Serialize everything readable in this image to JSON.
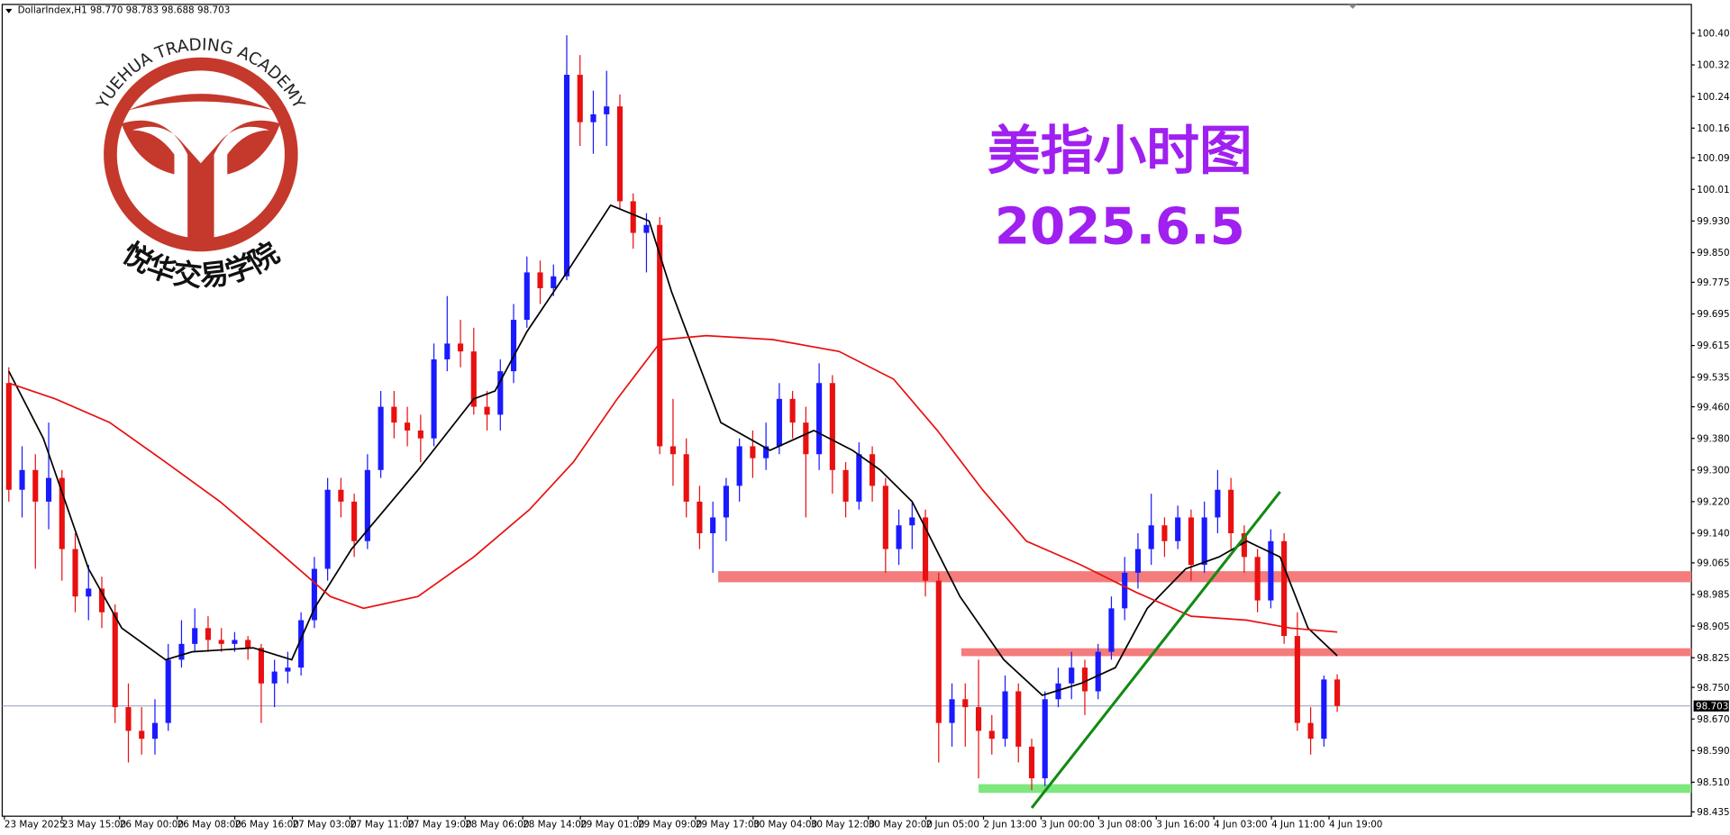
{
  "chart_data": {
    "type": "candlestick",
    "header": "DollarIndex,H1  98.770 98.783 98.688 98.703",
    "watermark_title": "美指小时图",
    "watermark_date": "2025.6.5",
    "logo_name_en": "YUEHUA TRADING ACADEMY",
    "logo_name_cn": "悦华交易学院",
    "up_color": "#1a1aff",
    "down_color": "#e81010",
    "ylim": [
      98.424,
      100.478
    ],
    "yticks": [
      100.405,
      100.325,
      100.245,
      100.165,
      {
        "value": 100.09,
        "label": "100.090"
      },
      {
        "value": 100.01,
        "label": "100.010"
      },
      {
        "value": 99.93,
        "label": "99.930"
      },
      {
        "value": 99.85,
        "label": "99.850"
      },
      99.775,
      99.695,
      99.615,
      99.535,
      {
        "value": 99.46,
        "label": "99.460"
      },
      {
        "value": 99.38,
        "label": "99.380"
      },
      {
        "value": 99.3,
        "label": "99.300"
      },
      {
        "value": 99.22,
        "label": "99.220"
      },
      {
        "value": 99.14,
        "label": "99.140"
      },
      99.065,
      98.985,
      98.905,
      98.825,
      {
        "value": 98.75,
        "label": "98.750"
      },
      {
        "value": 98.67,
        "label": "98.670"
      },
      {
        "value": 98.59,
        "label": "98.590"
      },
      {
        "value": 98.51,
        "label": "98.510"
      },
      98.435
    ],
    "xlabels": [
      "23 May 2025",
      "23 May 15:00",
      "26 May 00:00",
      "26 May 08:00",
      "26 May 16:00",
      "27 May 03:00",
      "27 May 11:00",
      "27 May 19:00",
      "28 May 06:00",
      "28 May 14:00",
      "29 May 01:00",
      "29 May 09:00",
      "29 May 17:00",
      "30 May 04:00",
      "30 May 12:00",
      "30 May 20:00",
      "2 Jun 05:00",
      "2 Jun 13:00",
      "3 Jun 00:00",
      "3 Jun 08:00",
      "3 Jun 16:00",
      "4 Jun 03:00",
      "4 Jun 11:00",
      "4 Jun 19:00"
    ],
    "last_price": 98.703,
    "candles": [
      [
        99.52,
        99.56,
        99.22,
        99.25
      ],
      [
        99.25,
        99.36,
        99.18,
        99.3
      ],
      [
        99.3,
        99.34,
        99.05,
        99.22
      ],
      [
        99.22,
        99.42,
        99.15,
        99.28
      ],
      [
        99.28,
        99.3,
        99.02,
        99.1
      ],
      [
        99.1,
        99.14,
        98.94,
        98.98
      ],
      [
        98.98,
        99.06,
        98.92,
        99.0
      ],
      [
        99.0,
        99.03,
        98.9,
        98.94
      ],
      [
        98.94,
        98.96,
        98.66,
        98.7
      ],
      [
        98.7,
        98.76,
        98.56,
        98.64
      ],
      [
        98.64,
        98.7,
        98.58,
        98.62
      ],
      [
        98.62,
        98.72,
        98.58,
        98.66
      ],
      [
        98.66,
        98.86,
        98.64,
        98.82
      ],
      [
        98.82,
        98.92,
        98.8,
        98.86
      ],
      [
        98.86,
        98.95,
        98.84,
        98.9
      ],
      [
        98.9,
        98.93,
        98.84,
        98.87
      ],
      [
        98.87,
        98.9,
        98.84,
        98.86
      ],
      [
        98.86,
        98.89,
        98.84,
        98.87
      ],
      [
        98.87,
        98.88,
        98.82,
        98.85
      ],
      [
        98.85,
        98.86,
        98.66,
        98.76
      ],
      [
        98.76,
        98.82,
        98.7,
        98.79
      ],
      [
        98.79,
        98.84,
        98.76,
        98.8
      ],
      [
        98.8,
        98.94,
        98.78,
        98.92
      ],
      [
        98.92,
        99.08,
        98.9,
        99.05
      ],
      [
        99.05,
        99.28,
        99.02,
        99.25
      ],
      [
        99.25,
        99.28,
        99.18,
        99.22
      ],
      [
        99.22,
        99.24,
        99.08,
        99.12
      ],
      [
        99.12,
        99.34,
        99.1,
        99.3
      ],
      [
        99.3,
        99.5,
        99.28,
        99.46
      ],
      [
        99.46,
        99.5,
        99.38,
        99.42
      ],
      [
        99.42,
        99.46,
        99.36,
        99.4
      ],
      [
        99.4,
        99.44,
        99.32,
        99.38
      ],
      [
        99.38,
        99.62,
        99.36,
        99.58
      ],
      [
        99.58,
        99.74,
        99.55,
        99.62
      ],
      [
        99.62,
        99.68,
        99.56,
        99.6
      ],
      [
        99.6,
        99.66,
        99.44,
        99.46
      ],
      [
        99.46,
        99.5,
        99.4,
        99.44
      ],
      [
        99.44,
        99.58,
        99.4,
        99.55
      ],
      [
        99.55,
        99.72,
        99.52,
        99.68
      ],
      [
        99.68,
        99.84,
        99.66,
        99.8
      ],
      [
        99.8,
        99.83,
        99.72,
        99.76
      ],
      [
        99.76,
        99.82,
        99.74,
        99.79
      ],
      [
        99.79,
        100.4,
        99.78,
        100.3
      ],
      [
        100.3,
        100.35,
        100.12,
        100.18
      ],
      [
        100.18,
        100.26,
        100.1,
        100.2
      ],
      [
        100.2,
        100.31,
        100.12,
        100.22
      ],
      [
        100.22,
        100.25,
        99.96,
        99.98
      ],
      [
        99.98,
        100.0,
        99.86,
        99.9
      ],
      [
        99.9,
        99.95,
        99.8,
        99.92
      ],
      [
        99.92,
        99.94,
        99.34,
        99.36
      ],
      [
        99.36,
        99.48,
        99.26,
        99.34
      ],
      [
        99.34,
        99.38,
        99.18,
        99.22
      ],
      [
        99.22,
        99.26,
        99.1,
        99.14
      ],
      [
        99.14,
        99.22,
        99.04,
        99.18
      ],
      [
        99.18,
        99.28,
        99.12,
        99.26
      ],
      [
        99.26,
        99.38,
        99.22,
        99.36
      ],
      [
        99.36,
        99.4,
        99.28,
        99.33
      ],
      [
        99.33,
        99.42,
        99.3,
        99.36
      ],
      [
        99.36,
        99.52,
        99.34,
        99.48
      ],
      [
        99.48,
        99.5,
        99.38,
        99.42
      ],
      [
        99.42,
        99.46,
        99.18,
        99.34
      ],
      [
        99.34,
        99.57,
        99.3,
        99.52
      ],
      [
        99.52,
        99.54,
        99.24,
        99.3
      ],
      [
        99.3,
        99.32,
        99.18,
        99.22
      ],
      [
        99.22,
        99.37,
        99.2,
        99.34
      ],
      [
        99.34,
        99.36,
        99.22,
        99.26
      ],
      [
        99.26,
        99.28,
        99.04,
        99.1
      ],
      [
        99.1,
        99.2,
        99.06,
        99.16
      ],
      [
        99.16,
        99.22,
        99.1,
        99.18
      ],
      [
        99.18,
        99.2,
        98.98,
        99.02
      ],
      [
        99.02,
        99.04,
        98.56,
        98.66
      ],
      [
        98.66,
        98.76,
        98.6,
        98.72
      ],
      [
        98.72,
        98.76,
        98.6,
        98.7
      ],
      [
        98.7,
        98.82,
        98.52,
        98.64
      ],
      [
        98.64,
        98.68,
        98.58,
        98.62
      ],
      [
        98.62,
        98.78,
        98.6,
        98.74
      ],
      [
        98.74,
        98.76,
        98.56,
        98.6
      ],
      [
        98.6,
        98.62,
        98.49,
        98.52
      ],
      [
        98.52,
        98.74,
        98.5,
        98.72
      ],
      [
        98.72,
        98.8,
        98.7,
        98.76
      ],
      [
        98.76,
        98.84,
        98.72,
        98.8
      ],
      [
        98.8,
        98.82,
        98.68,
        98.74
      ],
      [
        98.74,
        98.86,
        98.72,
        98.84
      ],
      [
        98.84,
        98.98,
        98.82,
        98.95
      ],
      [
        98.95,
        99.08,
        98.92,
        99.04
      ],
      [
        99.04,
        99.14,
        99.0,
        99.1
      ],
      [
        99.1,
        99.24,
        99.06,
        99.16
      ],
      [
        99.16,
        99.18,
        99.08,
        99.12
      ],
      [
        99.12,
        99.21,
        99.1,
        99.18
      ],
      [
        99.18,
        99.2,
        99.02,
        99.06
      ],
      [
        99.06,
        99.22,
        99.04,
        99.18
      ],
      [
        99.18,
        99.3,
        99.14,
        99.25
      ],
      [
        99.25,
        99.28,
        99.1,
        99.14
      ],
      [
        99.14,
        99.16,
        99.04,
        99.08
      ],
      [
        99.08,
        99.1,
        98.94,
        98.97
      ],
      [
        98.97,
        99.15,
        98.95,
        99.12
      ],
      [
        99.12,
        99.14,
        98.86,
        98.88
      ],
      [
        98.88,
        98.94,
        98.64,
        98.66
      ],
      [
        98.66,
        98.7,
        98.58,
        98.62
      ],
      [
        98.62,
        98.78,
        98.6,
        98.77
      ],
      [
        98.77,
        98.783,
        98.688,
        98.703
      ]
    ],
    "lines": [
      {
        "color": "#000000",
        "x": [
          0,
          2.6,
          6,
          8.5,
          11.8,
          13.8,
          18.4,
          21.3,
          23,
          25.8,
          30.8,
          35,
          36.6,
          39,
          42,
          45.3,
          48.2,
          49.9,
          53.6,
          57.3,
          60.6,
          63.5,
          65.6,
          68,
          71.6,
          74.9,
          77.8,
          80.7,
          83.3,
          85.7,
          88.6,
          91.1,
          93.2,
          95.7,
          97.8,
          100
        ],
        "values": [
          99.55,
          99.38,
          99.05,
          98.9,
          98.82,
          98.84,
          98.85,
          98.82,
          98.95,
          99.1,
          99.3,
          99.48,
          99.5,
          99.65,
          99.8,
          99.97,
          99.93,
          99.75,
          99.42,
          99.35,
          99.4,
          99.35,
          99.3,
          99.22,
          98.98,
          98.82,
          98.73,
          98.76,
          98.8,
          98.95,
          99.05,
          99.08,
          99.12,
          99.08,
          98.9,
          98.83
        ]
      },
      {
        "color": "#e81010",
        "x": [
          0,
          3.5,
          7.6,
          11.8,
          15.9,
          20.1,
          24.2,
          26.7,
          30.8,
          35,
          39.2,
          42.5,
          45.8,
          49.2,
          52.5,
          57.5,
          62.5,
          66.6,
          69.9,
          73.3,
          76.6,
          80.7,
          84.9,
          89,
          93.2,
          96.5,
          100
        ],
        "values": [
          99.52,
          99.48,
          99.42,
          99.32,
          99.22,
          99.1,
          98.98,
          98.95,
          98.98,
          99.08,
          99.2,
          99.32,
          99.48,
          99.63,
          99.64,
          99.63,
          99.6,
          99.53,
          99.4,
          99.25,
          99.12,
          99.06,
          98.99,
          98.93,
          98.92,
          98.9,
          98.89
        ]
      }
    ],
    "zones": [
      {
        "color": "#f47c7c",
        "from": 99.016,
        "to": 99.044,
        "start": 53.4
      },
      {
        "color": "#f47c7c",
        "from": 98.829,
        "to": 98.849,
        "start": 71.7
      },
      {
        "color": "#7ee87e",
        "from": 98.483,
        "to": 98.505,
        "start": 73
      }
    ],
    "trendline": {
      "color": "#138a13",
      "x": [
        77,
        95.7
      ],
      "values": [
        98.445,
        99.245
      ]
    }
  }
}
